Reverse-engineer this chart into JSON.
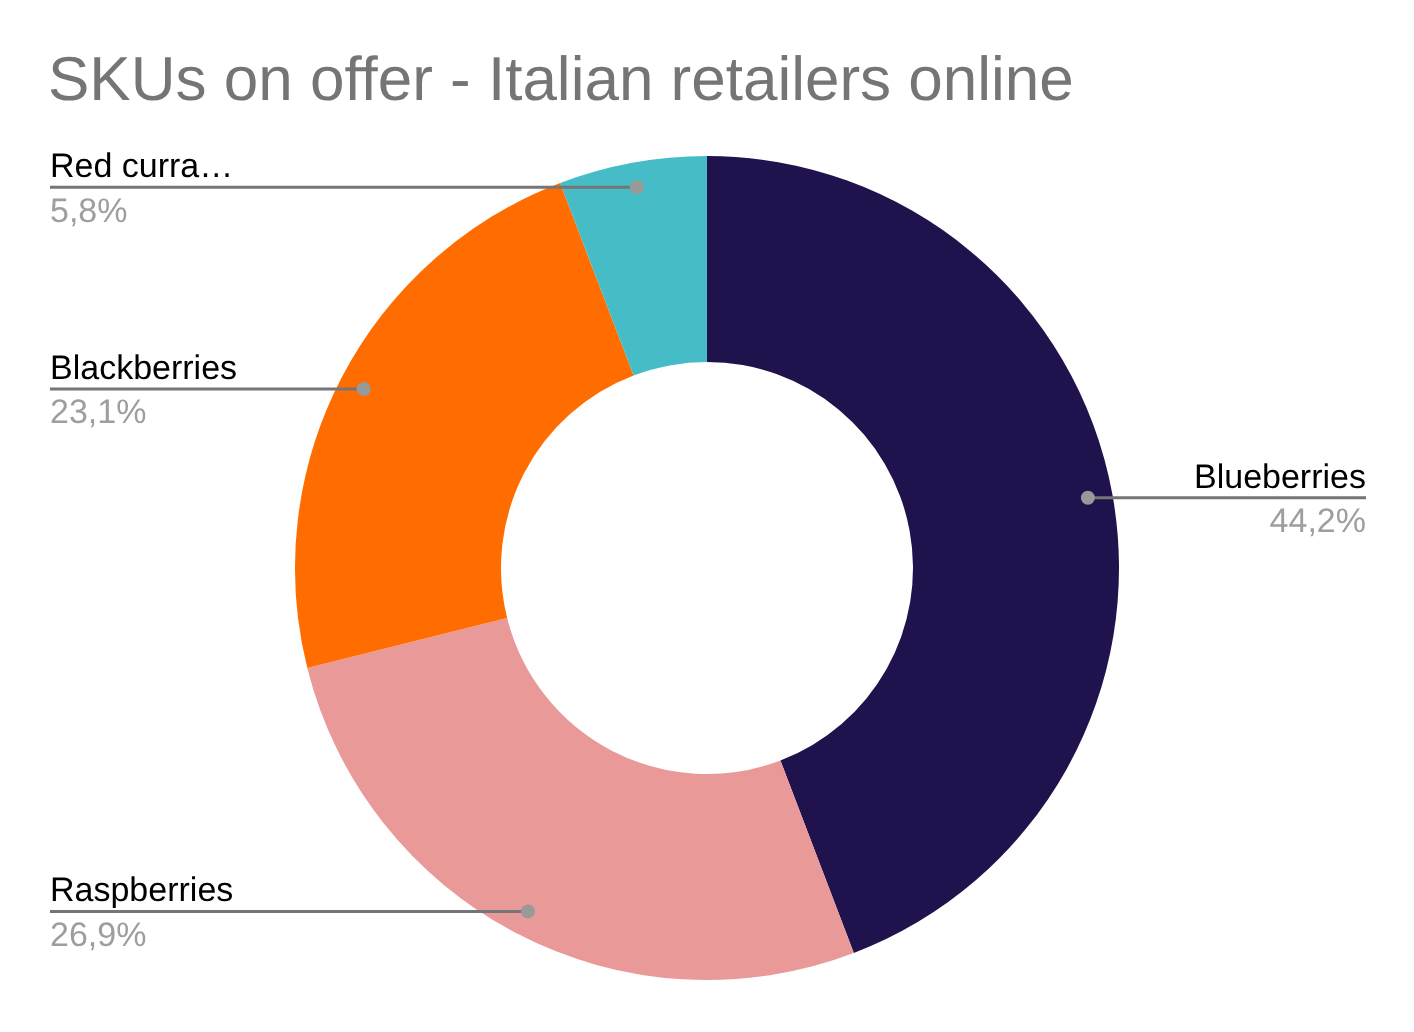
{
  "chart_data": {
    "type": "donut",
    "title": "SKUs on offer - Italian retailers online",
    "categories": [
      "Blueberries",
      "Raspberries",
      "Blackberries",
      "Red curra…"
    ],
    "values": [
      44.2,
      26.9,
      23.1,
      5.8
    ],
    "value_labels": [
      "44,2%",
      "26,9%",
      "23,1%",
      "5,8%"
    ],
    "colors": [
      "#20124d",
      "#ea9999",
      "#ff6d01",
      "#46bdc6"
    ],
    "legend": false
  }
}
